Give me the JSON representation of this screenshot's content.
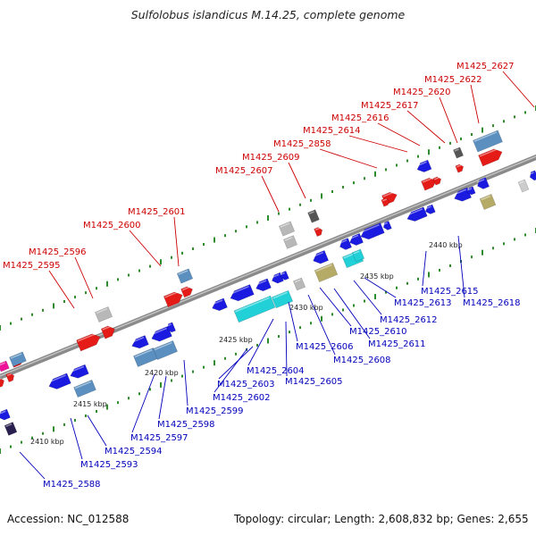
{
  "title": "Sulfolobus islandicus M.14.25, complete genome",
  "footer": {
    "accession": "Accession: NC_012588",
    "topology": "Topology: circular; Length: 2,608,832 bp; Genes: 2,655"
  },
  "colors": {
    "forward_labels": "#cc0000",
    "reverse_labels": "#0000bb",
    "backbone": "#888888",
    "dots": "#2e8b2e"
  },
  "position_ticks": [
    "2410 kbp",
    "2415 kbp",
    "2420 kbp",
    "2425 kbp",
    "2430 kbp",
    "2435 kbp",
    "2440 kbp"
  ],
  "forward_gene_labels": [
    "M1425_2595",
    "M1425_2596",
    "M1425_2600",
    "M1425_2601",
    "M1425_2607",
    "M1425_2609",
    "M1425_2858",
    "M1425_2614",
    "M1425_2616",
    "M1425_2617",
    "M1425_2620",
    "M1425_2622",
    "M1425_2627"
  ],
  "reverse_gene_labels": [
    "M1425_2588",
    "M1425_2593",
    "M1425_2594",
    "M1425_2597",
    "M1425_2598",
    "M1425_2599",
    "M1425_2602",
    "M1425_2603",
    "M1425_2604",
    "M1425_2605",
    "M1425_2606",
    "M1425_2608",
    "M1425_2610",
    "M1425_2611",
    "M1425_2612",
    "M1425_2613",
    "M1425_2615",
    "M1425_2618"
  ]
}
